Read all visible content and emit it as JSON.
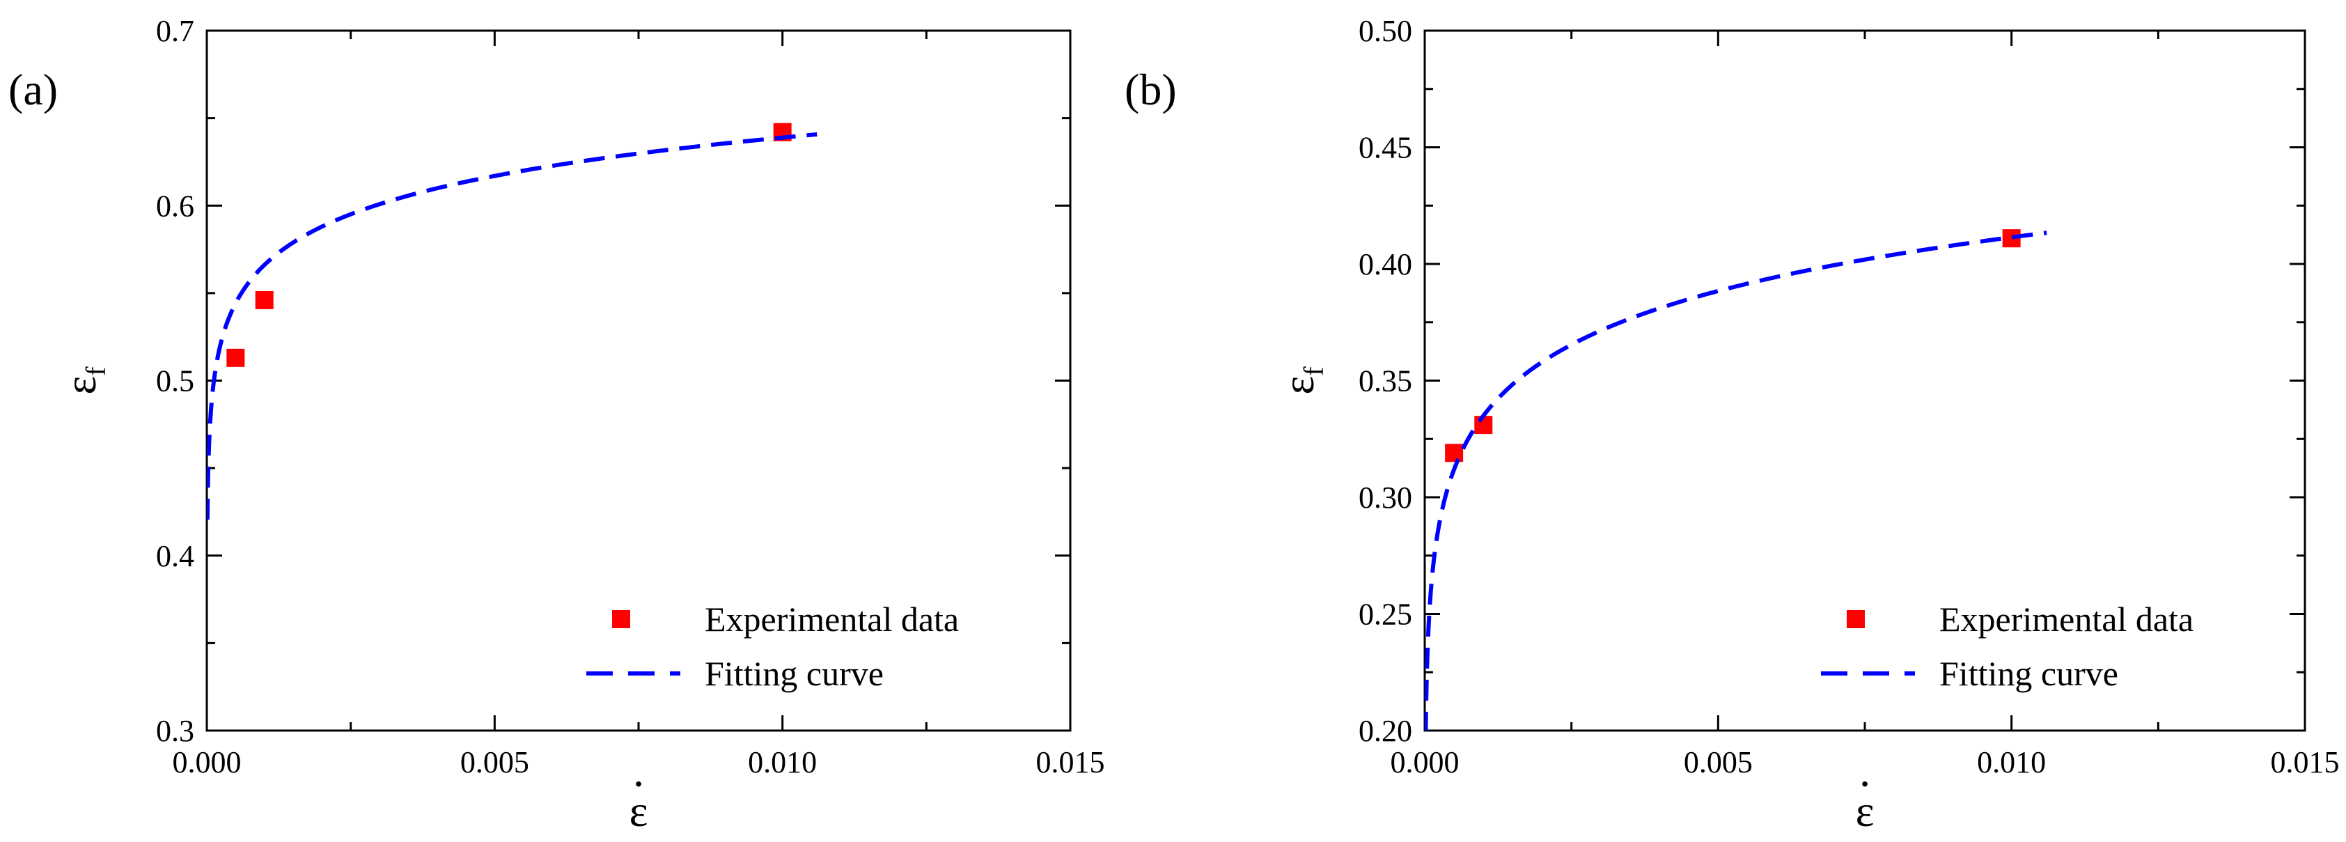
{
  "chart_data": [
    {
      "panel": "(a)",
      "type": "scatter",
      "xlabel": "ε",
      "xlabel_dot": "·",
      "ylabel": "ε",
      "ylabel_sub": "f",
      "xlim": [
        0.0,
        0.015
      ],
      "ylim": [
        0.3,
        0.7
      ],
      "xticks": [
        "0.000",
        "0.005",
        "0.010",
        "0.015"
      ],
      "yticks": [
        "0.3",
        "0.4",
        "0.5",
        "0.6",
        "0.7"
      ],
      "series": [
        {
          "name": "Experimental data",
          "kind": "markers",
          "color": "#ff0000",
          "x": [
            0.0005,
            0.001,
            0.01
          ],
          "y": [
            0.513,
            0.546,
            0.642
          ]
        },
        {
          "name": "Fitting curve",
          "kind": "dashed-line",
          "color": "#0000ff",
          "model": "y = a + b·ln(x)",
          "a": 0.78445,
          "b": 0.03161,
          "x_range": [
            1e-05,
            0.0106
          ]
        }
      ],
      "legend": {
        "position": "bottom-right",
        "entries": [
          "Experimental data",
          "Fitting curve"
        ]
      }
    },
    {
      "panel": "(b)",
      "type": "scatter",
      "xlabel": "ε",
      "xlabel_dot": "·",
      "ylabel": "ε",
      "ylabel_sub": "f",
      "xlim": [
        0.0,
        0.015
      ],
      "ylim": [
        0.2,
        0.5
      ],
      "xticks": [
        "0.000",
        "0.005",
        "0.010",
        "0.015"
      ],
      "yticks": [
        "0.20",
        "0.25",
        "0.30",
        "0.35",
        "0.40",
        "0.45",
        "0.50"
      ],
      "series": [
        {
          "name": "Experimental data",
          "kind": "markers",
          "color": "#ff0000",
          "x": [
            0.0005,
            0.001,
            0.01
          ],
          "y": [
            0.319,
            0.331,
            0.411
          ]
        },
        {
          "name": "Fitting curve",
          "kind": "dashed-line",
          "color": "#0000ff",
          "model": "y = a + b·ln(x)",
          "a": 0.56436,
          "b": 0.03321,
          "x_range": [
            3.2e-06,
            0.0106
          ]
        }
      ],
      "legend": {
        "position": "bottom-right",
        "entries": [
          "Experimental data",
          "Fitting curve"
        ]
      }
    }
  ]
}
